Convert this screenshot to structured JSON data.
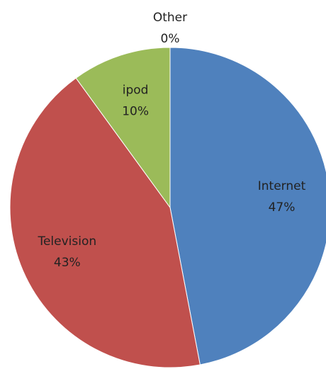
{
  "chart_data": {
    "type": "pie",
    "categories": [
      "Internet",
      "Television",
      "ipod",
      "Other"
    ],
    "values": [
      47,
      43,
      10,
      0
    ],
    "value_labels": [
      "47%",
      "43%",
      "10%",
      "0%"
    ],
    "colors": [
      "#4f81bd",
      "#c0504d",
      "#9bbb59",
      "#8064a2"
    ]
  }
}
